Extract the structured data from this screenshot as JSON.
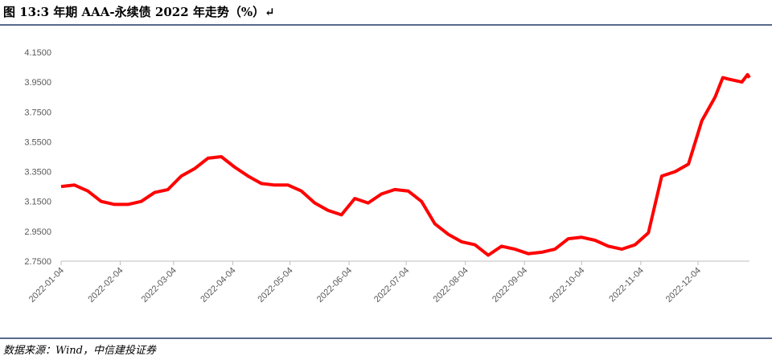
{
  "header": {
    "title": "图 13:3 年期 AAA-永续债 2022 年走势（%）↵"
  },
  "chart_data": {
    "type": "line",
    "x": [
      "2022-01-04",
      "2022-01-11",
      "2022-01-18",
      "2022-01-25",
      "2022-02-01",
      "2022-02-08",
      "2022-02-15",
      "2022-02-22",
      "2022-03-01",
      "2022-03-08",
      "2022-03-15",
      "2022-03-22",
      "2022-03-29",
      "2022-04-05",
      "2022-04-12",
      "2022-04-19",
      "2022-04-26",
      "2022-05-03",
      "2022-05-10",
      "2022-05-17",
      "2022-05-24",
      "2022-05-31",
      "2022-06-07",
      "2022-06-14",
      "2022-06-21",
      "2022-06-28",
      "2022-07-05",
      "2022-07-12",
      "2022-07-19",
      "2022-07-26",
      "2022-08-02",
      "2022-08-09",
      "2022-08-16",
      "2022-08-23",
      "2022-08-30",
      "2022-09-06",
      "2022-09-13",
      "2022-09-20",
      "2022-09-27",
      "2022-10-04",
      "2022-10-11",
      "2022-10-18",
      "2022-10-25",
      "2022-11-01",
      "2022-11-08",
      "2022-11-15",
      "2022-11-22",
      "2022-11-29",
      "2022-12-06",
      "2022-12-13",
      "2022-12-17",
      "2022-12-20",
      "2022-12-27",
      "2022-12-30",
      "2022-12-31"
    ],
    "series": [
      {
        "color": "#ff0000",
        "values": [
          3.25,
          3.26,
          3.22,
          3.15,
          3.13,
          3.13,
          3.15,
          3.21,
          3.23,
          3.32,
          3.37,
          3.44,
          3.45,
          3.38,
          3.32,
          3.27,
          3.26,
          3.26,
          3.22,
          3.14,
          3.09,
          3.06,
          3.17,
          3.14,
          3.2,
          3.23,
          3.22,
          3.15,
          3.0,
          2.93,
          2.88,
          2.86,
          2.79,
          2.85,
          2.83,
          2.8,
          2.81,
          2.83,
          2.9,
          2.91,
          2.89,
          2.85,
          2.83,
          2.86,
          2.94,
          3.32,
          3.35,
          3.4,
          3.69,
          3.85,
          3.98,
          3.97,
          3.95,
          4.0,
          3.98
        ]
      }
    ],
    "xlim": [
      "2022-01-04",
      "2022-12-31"
    ],
    "xticks": [
      "2022-01-04",
      "2022-02-04",
      "2022-03-04",
      "2022-04-04",
      "2022-05-04",
      "2022-06-04",
      "2022-07-04",
      "2022-08-04",
      "2022-09-04",
      "2022-10-04",
      "2022-11-04",
      "2022-12-04"
    ],
    "ylim": [
      2.75,
      4.15
    ],
    "yticks": [
      {
        "value": 2.75,
        "label": "2.7500"
      },
      {
        "value": 2.95,
        "label": "2.9500"
      },
      {
        "value": 3.15,
        "label": "3.1500"
      },
      {
        "value": 3.35,
        "label": "3.3500"
      },
      {
        "value": 3.55,
        "label": "3.5500"
      },
      {
        "value": 3.75,
        "label": "3.7500"
      },
      {
        "value": 3.95,
        "label": "3.9500"
      },
      {
        "value": 4.15,
        "label": "4.1500"
      }
    ],
    "grid": false
  },
  "footer": {
    "source": "数据来源：Wind，中信建投证券"
  }
}
